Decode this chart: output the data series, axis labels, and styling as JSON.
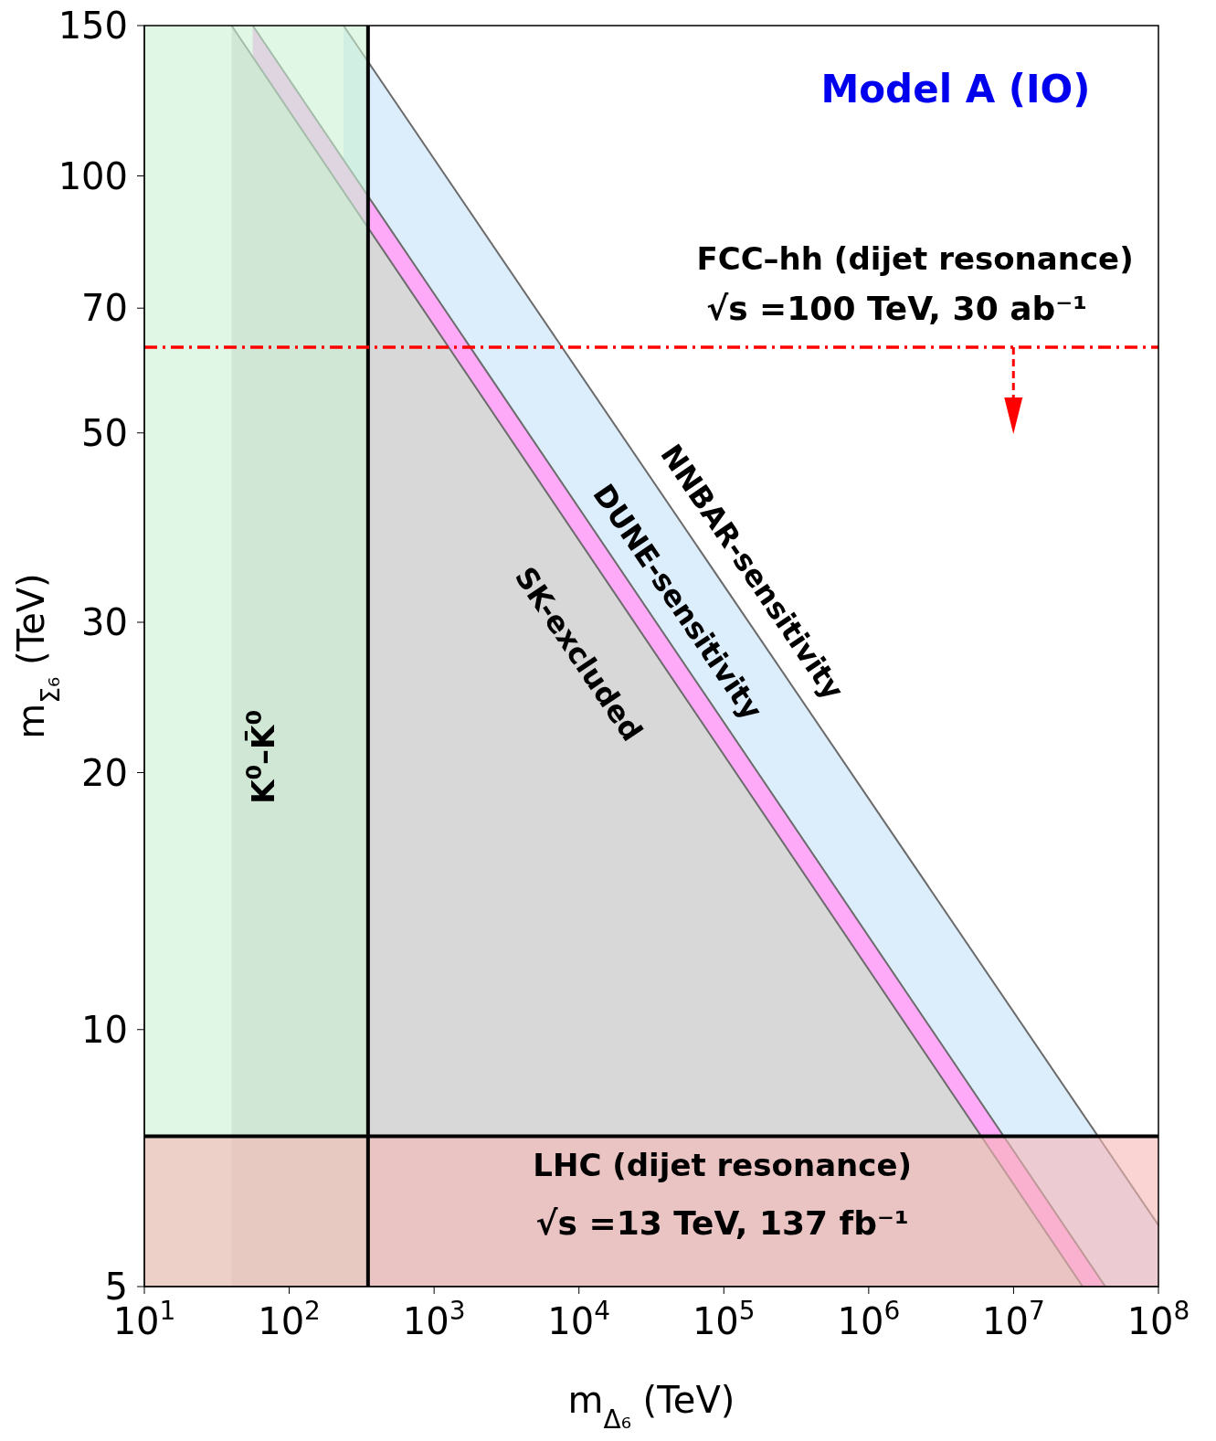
{
  "chart_data": {
    "type": "area",
    "title": "Model A (IO)",
    "xlabel": "m$_{Δ₆}$ (TeV)",
    "ylabel": "m$_{Σ₆}$ (TeV)",
    "log": "xy",
    "xlim": [
      10,
      100000000
    ],
    "xticks": [
      {
        "value": 10,
        "label": "10$^{1}$"
      },
      {
        "value": 100,
        "label": "10$^{2}$"
      },
      {
        "value": 1000,
        "label": "10$^{3}$"
      },
      {
        "value": 10000,
        "label": "10$^{4}$"
      },
      {
        "value": 100000,
        "label": "10$^{5}$"
      },
      {
        "value": 1000000,
        "label": "10$^{6}$"
      },
      {
        "value": 10000000,
        "label": "10$^{7}$"
      },
      {
        "value": 100000000,
        "label": "10$^{8}$"
      }
    ],
    "ylim": [
      5,
      150
    ],
    "yticks": [
      5,
      10,
      20,
      30,
      50,
      70,
      100,
      150
    ],
    "series": [
      {
        "name": "NNBAR-sensitivity",
        "color": "#dcedfc",
        "x": [
          237,
          100000000
        ],
        "values": [
          150,
          5.9
        ]
      },
      {
        "name": "DUNE-sensitivity",
        "color": "#ffaaf8",
        "x": [
          56,
          43000000
        ],
        "values": [
          150,
          5
        ]
      },
      {
        "name": "SK-excluded",
        "color": "#d8d8d8",
        "x": [
          40,
          30000000
        ],
        "values": [
          150,
          5
        ]
      }
    ],
    "bands": [
      {
        "axis": "x",
        "from": 10,
        "to": 350,
        "label": "K$^{0}$–K̄$^{0}$",
        "color": "#c9f2d2"
      },
      {
        "axis": "y",
        "from": 5,
        "to": 7.5,
        "label": "LHC (dijet resonance)",
        "color": "#f7b6b6"
      }
    ],
    "ref_lines": [
      {
        "axis": "x",
        "value": 350,
        "color": "#000000",
        "line_style": "solid"
      },
      {
        "axis": "y",
        "value": 7.5,
        "color": "#000000",
        "line_style": "solid"
      },
      {
        "axis": "y",
        "value": 63,
        "label": "FCC–hh (dijet resonance)",
        "color": "#ff0000",
        "line_style": "dashed"
      }
    ],
    "annotations": [
      "√s =100 TeV, 30 ab⁻¹",
      "√s =13 TeV, 137 fb⁻¹"
    ]
  }
}
